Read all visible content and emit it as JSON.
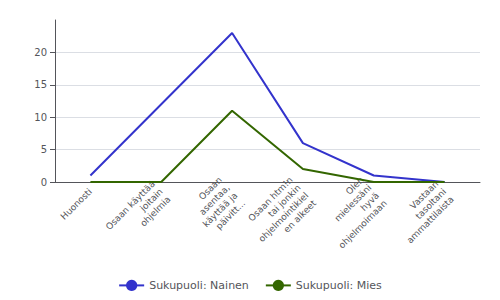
{
  "chart_data": {
    "type": "line",
    "categories": [
      "Huonosti",
      "Osaan käyttää\njoitain\nohjelmia",
      "Osaan\nasentaa,\nkäyttää ja\npäivitt...",
      "Osaan htm!n\ntai jonkin\nohjelmointikiel\nen alkeet",
      "Olen\nmielessäni\nhyvä\nohjelmoimaan",
      "Vastaan\ntasoltani\nammattilaista"
    ],
    "series": [
      {
        "name": "Sukupuoli: Nainen",
        "color": "#3333cc",
        "values": [
          1,
          12,
          23,
          6,
          1,
          0
        ]
      },
      {
        "name": "Sukupuoli: Mies",
        "color": "#336600",
        "values": [
          0,
          0,
          11,
          2,
          0,
          0
        ]
      }
    ],
    "ylim": [
      0,
      25
    ],
    "yticks": [
      0,
      5,
      10,
      15,
      20
    ],
    "grid": true,
    "legend": "bottom"
  }
}
